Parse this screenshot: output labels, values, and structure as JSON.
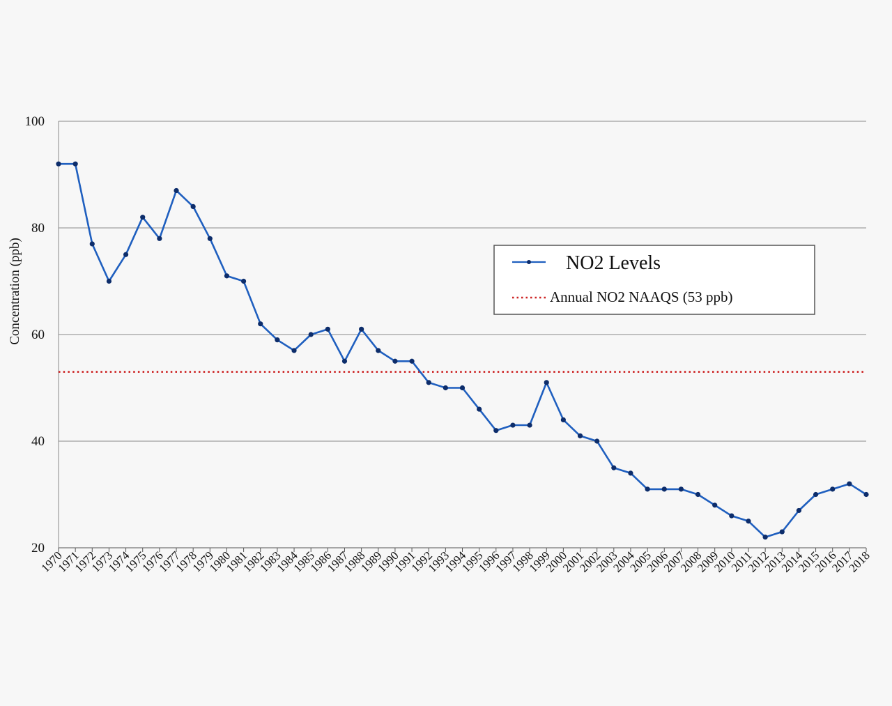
{
  "chart_data": {
    "type": "line",
    "title": "",
    "xlabel": "",
    "ylabel": "Concentration (ppb)",
    "ylim": [
      20,
      100
    ],
    "yticks": [
      20,
      40,
      60,
      80,
      100
    ],
    "grid": true,
    "legend_position": "right",
    "x": [
      "1970",
      "1971",
      "1972",
      "1973",
      "1974",
      "1975",
      "1976",
      "1977",
      "1978",
      "1979",
      "1980",
      "1981",
      "1982",
      "1983",
      "1984",
      "1985",
      "1986",
      "1987",
      "1988",
      "1989",
      "1990",
      "1991",
      "1992",
      "1993",
      "1994",
      "1995",
      "1996",
      "1997",
      "1998",
      "1999",
      "2000",
      "2001",
      "2002",
      "2003",
      "2004",
      "2005",
      "2006",
      "2007",
      "2008",
      "2009",
      "2010",
      "2011",
      "2012",
      "2013",
      "2014",
      "2015",
      "2016",
      "2017",
      "2018"
    ],
    "series": [
      {
        "name": "NO2 Levels",
        "color": "#1f5fbf",
        "marker_color": "#0d2d6b",
        "values": [
          92,
          92,
          77,
          70,
          75,
          82,
          78,
          87,
          84,
          78,
          71,
          70,
          62,
          59,
          57,
          60,
          61,
          55,
          61,
          57,
          55,
          55,
          51,
          50,
          50,
          46,
          42,
          43,
          43,
          51,
          44,
          41,
          40,
          35,
          34,
          31,
          31,
          31,
          30,
          28,
          26,
          25,
          22,
          23,
          27,
          30,
          31,
          32,
          30
        ]
      }
    ],
    "reference_lines": [
      {
        "name": "Annual NO2 NAAQS (53 ppb)",
        "value": 53,
        "color": "#cc1f1f",
        "style": "dotted"
      }
    ]
  }
}
